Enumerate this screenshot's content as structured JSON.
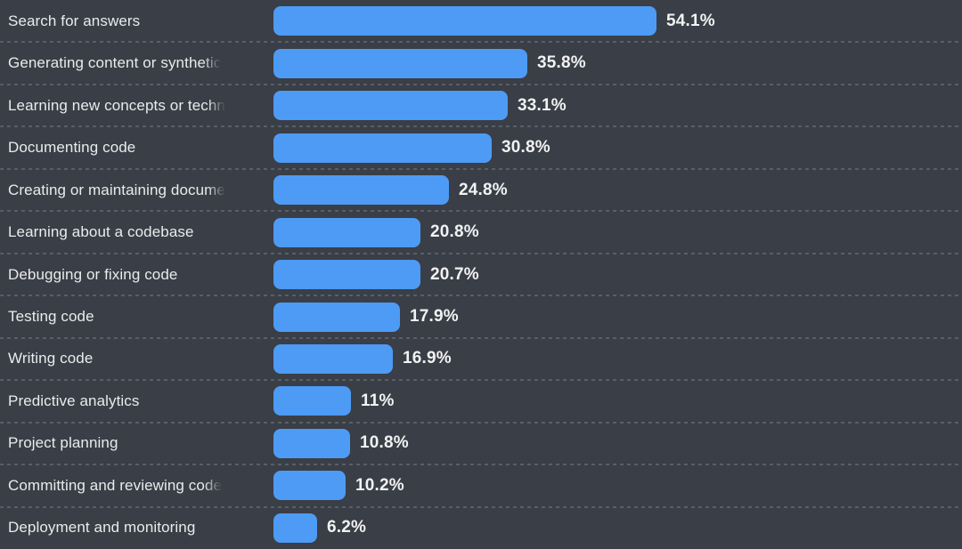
{
  "chart_data": {
    "type": "bar",
    "orientation": "horizontal",
    "title": "",
    "xlabel": "",
    "ylabel": "",
    "grid": "dashed-row-separators",
    "legend": "none",
    "xlim": [
      0,
      54.1
    ],
    "colors": {
      "bar": "#4d9bf5",
      "background": "#3a3e46",
      "label_text": "#e9ebec",
      "value_text": "#f1f2f3",
      "divider": "#5a5f67"
    },
    "categories": [
      "Search for answers",
      "Generating content or synthetic",
      "Learning new concepts or techn",
      "Documenting code",
      "Creating or maintaining docume",
      "Learning about a codebase",
      "Debugging or fixing code",
      "Testing code",
      "Writing code",
      "Predictive analytics",
      "Project planning",
      "Committing and reviewing code",
      "Deployment and monitoring"
    ],
    "values": [
      54.1,
      35.8,
      33.1,
      30.8,
      24.8,
      20.8,
      20.7,
      17.9,
      16.9,
      11,
      10.8,
      10.2,
      6.2
    ],
    "rows": [
      {
        "label": "Search for answers",
        "value": 54.1,
        "value_label": "54.1%",
        "truncated": false
      },
      {
        "label": "Generating content or synthetic",
        "value": 35.8,
        "value_label": "35.8%",
        "truncated": true
      },
      {
        "label": "Learning new concepts or techn",
        "value": 33.1,
        "value_label": "33.1%",
        "truncated": true
      },
      {
        "label": "Documenting code",
        "value": 30.8,
        "value_label": "30.8%",
        "truncated": false
      },
      {
        "label": "Creating or maintaining docume",
        "value": 24.8,
        "value_label": "24.8%",
        "truncated": true
      },
      {
        "label": "Learning about a codebase",
        "value": 20.8,
        "value_label": "20.8%",
        "truncated": false
      },
      {
        "label": "Debugging or fixing code",
        "value": 20.7,
        "value_label": "20.7%",
        "truncated": false
      },
      {
        "label": "Testing code",
        "value": 17.9,
        "value_label": "17.9%",
        "truncated": false
      },
      {
        "label": "Writing code",
        "value": 16.9,
        "value_label": "16.9%",
        "truncated": false
      },
      {
        "label": "Predictive analytics",
        "value": 11,
        "value_label": "11%",
        "truncated": false
      },
      {
        "label": "Project planning",
        "value": 10.8,
        "value_label": "10.8%",
        "truncated": false
      },
      {
        "label": "Committing and reviewing code",
        "value": 10.2,
        "value_label": "10.2%",
        "truncated": true
      },
      {
        "label": "Deployment and monitoring",
        "value": 6.2,
        "value_label": "6.2%",
        "truncated": false
      }
    ]
  }
}
